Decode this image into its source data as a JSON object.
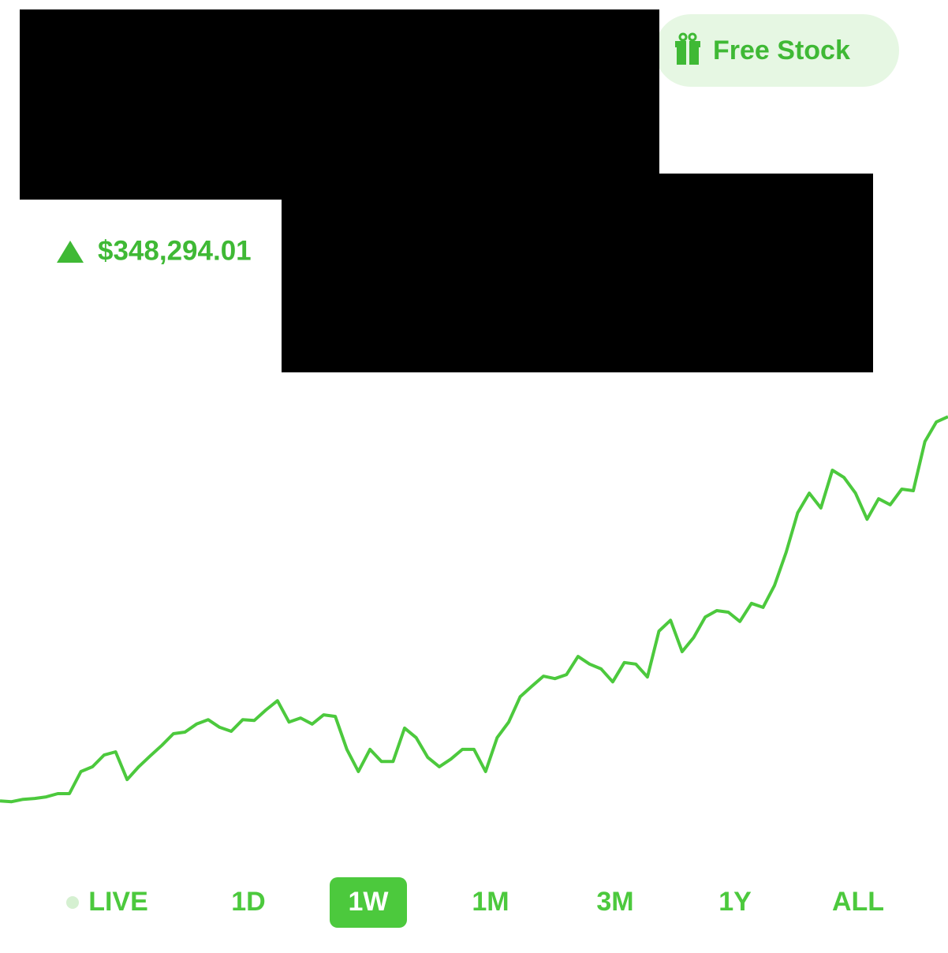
{
  "header": {
    "badge": "Free Stock"
  },
  "change": "$348,294.01",
  "chart_data": {
    "type": "line",
    "color": "#4cc93d",
    "values": [
      2.9,
      2.7,
      3.3,
      3.5,
      3.9,
      4.7,
      4.7,
      10.2,
      11.4,
      14.3,
      15.1,
      8.2,
      11.4,
      14.1,
      16.7,
      19.6,
      20.0,
      22.0,
      23.1,
      21.2,
      20.2,
      23.1,
      22.9,
      25.5,
      27.8,
      22.5,
      23.5,
      22.0,
      24.3,
      23.9,
      15.7,
      10.2,
      15.7,
      12.7,
      12.7,
      21.0,
      18.6,
      13.7,
      11.4,
      13.3,
      15.7,
      15.7,
      10.2,
      18.6,
      22.5,
      28.8,
      31.4,
      33.9,
      33.3,
      34.3,
      38.8,
      36.9,
      35.7,
      32.5,
      37.3,
      36.9,
      33.7,
      45.1,
      47.8,
      40.0,
      43.5,
      48.6,
      50.2,
      49.8,
      47.5,
      52.0,
      51.0,
      56.5,
      64.7,
      74.5,
      79.4,
      75.7,
      85.1,
      83.3,
      79.4,
      72.9,
      78.0,
      76.5,
      80.4,
      80.0,
      92.2,
      97.1,
      98.4
    ],
    "ylim": [
      0,
      100
    ]
  },
  "ranges": [
    "LIVE",
    "1D",
    "1W",
    "1M",
    "3M",
    "1Y",
    "ALL"
  ],
  "selected": 2
}
